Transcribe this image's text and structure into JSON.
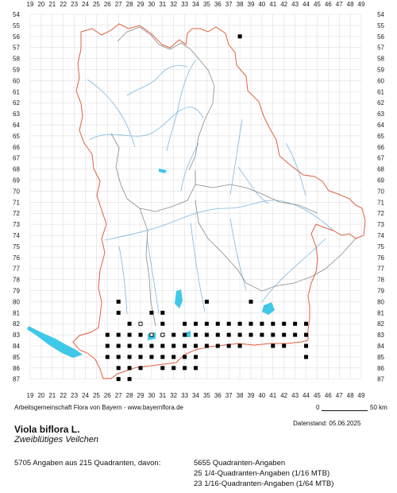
{
  "map": {
    "x_ticks": [
      "19",
      "20",
      "21",
      "22",
      "23",
      "24",
      "25",
      "26",
      "27",
      "28",
      "29",
      "30",
      "31",
      "32",
      "33",
      "34",
      "35",
      "36",
      "37",
      "38",
      "39",
      "40",
      "41",
      "42",
      "43",
      "44",
      "45",
      "46",
      "47",
      "48",
      "49"
    ],
    "y_ticks": [
      "54",
      "55",
      "56",
      "57",
      "58",
      "59",
      "60",
      "61",
      "62",
      "63",
      "64",
      "65",
      "66",
      "67",
      "68",
      "69",
      "70",
      "71",
      "72",
      "73",
      "74",
      "75",
      "76",
      "77",
      "78",
      "79",
      "80",
      "81",
      "82",
      "83",
      "84",
      "85",
      "86",
      "87"
    ],
    "colors": {
      "state_border": "#e06040",
      "district_border": "#8a8a8a",
      "rivers": "#7fb8e0",
      "lakes": "#40c8e8",
      "grid": "#d8d8d8",
      "occurrence": "#000000"
    },
    "occurrence_cells": [
      [
        38,
        56
      ],
      [
        27,
        80
      ],
      [
        27,
        81
      ],
      [
        35,
        80
      ],
      [
        39,
        80
      ],
      [
        30,
        81
      ],
      [
        31,
        81
      ],
      [
        28,
        82
      ],
      [
        29,
        82
      ],
      [
        31,
        82
      ],
      [
        33,
        82
      ],
      [
        34,
        82
      ],
      [
        35,
        82
      ],
      [
        36,
        82
      ],
      [
        37,
        82
      ],
      [
        38,
        82
      ],
      [
        39,
        82
      ],
      [
        40,
        82
      ],
      [
        41,
        82
      ],
      [
        42,
        82
      ],
      [
        43,
        82
      ],
      [
        44,
        82
      ],
      [
        26,
        83
      ],
      [
        27,
        83
      ],
      [
        28,
        83
      ],
      [
        29,
        83
      ],
      [
        30,
        83
      ],
      [
        31,
        83
      ],
      [
        32,
        83
      ],
      [
        33,
        83
      ],
      [
        34,
        83
      ],
      [
        35,
        83
      ],
      [
        36,
        83
      ],
      [
        37,
        83
      ],
      [
        38,
        83
      ],
      [
        39,
        83
      ],
      [
        40,
        83
      ],
      [
        41,
        83
      ],
      [
        42,
        83
      ],
      [
        43,
        83
      ],
      [
        44,
        83
      ],
      [
        26,
        84
      ],
      [
        27,
        84
      ],
      [
        28,
        84
      ],
      [
        29,
        84
      ],
      [
        30,
        84
      ],
      [
        31,
        84
      ],
      [
        32,
        84
      ],
      [
        33,
        84
      ],
      [
        34,
        84
      ],
      [
        35,
        84
      ],
      [
        36,
        84
      ],
      [
        37,
        84
      ],
      [
        38,
        84
      ],
      [
        41,
        84
      ],
      [
        42,
        84
      ],
      [
        44,
        84
      ],
      [
        26,
        85
      ],
      [
        27,
        85
      ],
      [
        28,
        85
      ],
      [
        29,
        85
      ],
      [
        30,
        85
      ],
      [
        31,
        85
      ],
      [
        32,
        85
      ],
      [
        33,
        85
      ],
      [
        34,
        85
      ],
      [
        44,
        85
      ],
      [
        27,
        86
      ],
      [
        28,
        86
      ],
      [
        29,
        86
      ],
      [
        31,
        86
      ],
      [
        32,
        86
      ],
      [
        33,
        86
      ],
      [
        34,
        86
      ],
      [
        27,
        87
      ],
      [
        28,
        87
      ]
    ],
    "open_markers": [
      [
        29,
        82
      ],
      [
        30,
        83
      ],
      [
        31,
        83
      ]
    ]
  },
  "footer": {
    "credit": "Arbeitsgemeinschaft Flora von Bayern - www.bayernflora.de",
    "scale_zero": "0",
    "scale_label": "50 km",
    "date": "Datenstand: 05.06.2025"
  },
  "species": {
    "latin": "Viola biflora L.",
    "german": "Zweiblütiges Veilchen"
  },
  "stats": {
    "summary": "5705 Angaben aus 215 Quadranten, davon:",
    "lines": [
      "5655 Quadranten-Angaben",
      "25 1/4-Quadranten-Angaben (1/16 MTB)",
      "23 1/16-Quadranten-Angaben (1/64 MTB)"
    ]
  }
}
